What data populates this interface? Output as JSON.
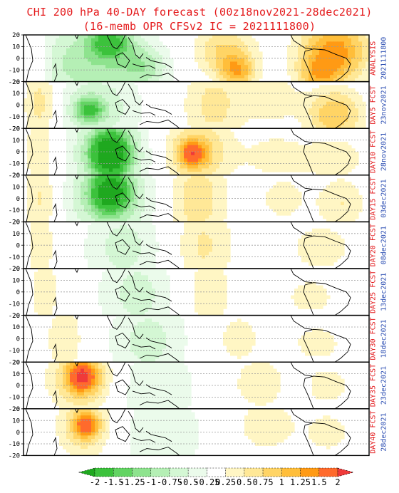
{
  "title": "CHI 200 hPa 40-DAY forecast (00z18nov2021-28dec2021)",
  "subtitle": "(16-memb OPR CFSv2 IC = 2021111800)",
  "chart_data": {
    "type": "heatmap",
    "title": "CHI 200 hPa 40-DAY forecast (00z18nov2021-28dec2021)",
    "subtitle": "(16-memb OPR CFSv2 IC = 2021111800)",
    "y_ticks": [
      20,
      10,
      0,
      -10,
      -20
    ],
    "ylim": [
      -20,
      20
    ],
    "colorbar": {
      "labels": [
        "-2",
        "-1.5",
        "-1.25",
        "-1",
        "-0.75",
        "-0.5",
        "-0.25",
        "0.25",
        "0.5",
        "0.75",
        "1",
        "1.25",
        "1.5",
        "2"
      ],
      "colors": [
        "#1fa81f",
        "#3cc23c",
        "#63d463",
        "#8ee38e",
        "#b5efb5",
        "#d4f7d4",
        "#ebfbeb",
        "#ffffff",
        "#fff6c4",
        "#ffe897",
        "#ffd465",
        "#ffbe3a",
        "#ff9a14",
        "#ff6a2c",
        "#ef3a3a"
      ]
    },
    "panels": [
      {
        "label": "ANALYSIS",
        "date": "2021111800",
        "label_color": "#e41a1c",
        "date_color": "#2d4fb3",
        "blobs": [
          [
            0.19,
            0.62,
            0.18,
            1.05,
            -0.9
          ],
          [
            0.25,
            0.15,
            0.06,
            0.35,
            -1.2
          ],
          [
            0.35,
            0.7,
            0.07,
            0.45,
            -0.6
          ],
          [
            0.58,
            0.35,
            0.09,
            0.55,
            0.8
          ],
          [
            0.62,
            0.8,
            0.05,
            0.35,
            1.0
          ],
          [
            0.9,
            0.35,
            0.1,
            0.7,
            1.4
          ],
          [
            0.85,
            0.9,
            0.06,
            0.4,
            0.7
          ],
          [
            0.03,
            0.5,
            0.04,
            0.8,
            0.5
          ]
        ]
      },
      {
        "label": "DAY5 FCST",
        "date": "23nov2021",
        "label_color": "#e41a1c",
        "date_color": "#2d4fb3",
        "blobs": [
          [
            0.21,
            0.55,
            0.13,
            0.9,
            -0.7
          ],
          [
            0.19,
            0.6,
            0.04,
            0.25,
            -1.1
          ],
          [
            0.55,
            0.5,
            0.09,
            0.9,
            0.6
          ],
          [
            0.72,
            0.35,
            0.08,
            0.6,
            0.4
          ],
          [
            0.9,
            0.7,
            0.08,
            0.55,
            1.0
          ],
          [
            0.05,
            0.5,
            0.05,
            1.0,
            0.7
          ]
        ]
      },
      {
        "label": "DAY10 FCST",
        "date": "28nov2021",
        "label_color": "#e41a1c",
        "date_color": "#2d4fb3",
        "blobs": [
          [
            0.25,
            0.55,
            0.12,
            1.05,
            -1.0
          ],
          [
            0.25,
            0.55,
            0.05,
            0.45,
            -2.0
          ],
          [
            0.5,
            0.5,
            0.1,
            0.75,
            0.9
          ],
          [
            0.49,
            0.55,
            0.035,
            0.25,
            1.2
          ],
          [
            0.73,
            0.6,
            0.09,
            0.5,
            0.4
          ],
          [
            0.9,
            0.65,
            0.09,
            0.5,
            0.45
          ],
          [
            0.05,
            0.5,
            0.05,
            1.0,
            0.5
          ]
        ]
      },
      {
        "label": "DAY15 FCST",
        "date": "03dec2021",
        "label_color": "#e41a1c",
        "date_color": "#2d4fb3",
        "blobs": [
          [
            0.25,
            0.45,
            0.13,
            1.05,
            -1.0
          ],
          [
            0.25,
            0.35,
            0.05,
            0.4,
            -1.8
          ],
          [
            0.5,
            0.5,
            0.09,
            1.0,
            0.7
          ],
          [
            0.75,
            0.5,
            0.08,
            0.6,
            0.35
          ],
          [
            0.92,
            0.6,
            0.07,
            0.6,
            0.5
          ],
          [
            0.05,
            0.5,
            0.05,
            1.0,
            0.6
          ]
        ]
      },
      {
        "label": "DAY20 FCST",
        "date": "08dec2021",
        "label_color": "#e41a1c",
        "date_color": "#2d4fb3",
        "blobs": [
          [
            0.29,
            0.55,
            0.12,
            1.05,
            -0.6
          ],
          [
            0.52,
            0.5,
            0.09,
            1.0,
            0.55
          ],
          [
            0.86,
            0.55,
            0.1,
            0.6,
            0.4
          ],
          [
            0.05,
            0.5,
            0.05,
            1.0,
            0.4
          ]
        ]
      },
      {
        "label": "DAY25 FCST",
        "date": "13dec2021",
        "label_color": "#e41a1c",
        "date_color": "#2d4fb3",
        "blobs": [
          [
            0.33,
            0.55,
            0.12,
            1.05,
            -0.6
          ],
          [
            0.53,
            0.5,
            0.08,
            0.9,
            0.45
          ],
          [
            0.83,
            0.6,
            0.09,
            0.5,
            0.35
          ],
          [
            0.06,
            0.5,
            0.05,
            0.9,
            0.4
          ]
        ]
      },
      {
        "label": "DAY30 FCST",
        "date": "18dec2021",
        "label_color": "#e41a1c",
        "date_color": "#2d4fb3",
        "blobs": [
          [
            0.36,
            0.55,
            0.12,
            1.05,
            -0.6
          ],
          [
            0.12,
            0.5,
            0.06,
            0.8,
            0.45
          ],
          [
            0.62,
            0.5,
            0.08,
            0.7,
            0.35
          ],
          [
            0.85,
            0.6,
            0.09,
            0.5,
            0.35
          ]
        ]
      },
      {
        "label": "DAY35 FCST",
        "date": "23dec2021",
        "label_color": "#e41a1c",
        "date_color": "#2d4fb3",
        "blobs": [
          [
            0.38,
            0.55,
            0.13,
            1.05,
            -0.5
          ],
          [
            0.17,
            0.35,
            0.09,
            0.7,
            1.0
          ],
          [
            0.17,
            0.3,
            0.04,
            0.3,
            1.3
          ],
          [
            0.68,
            0.45,
            0.08,
            0.6,
            0.45
          ],
          [
            0.88,
            0.5,
            0.08,
            0.55,
            0.35
          ]
        ]
      },
      {
        "label": "DAY40 FCST",
        "date": "28dec2021",
        "label_color": "#e41a1c",
        "date_color": "#2d4fb3",
        "blobs": [
          [
            0.4,
            0.55,
            0.13,
            1.05,
            -0.5
          ],
          [
            0.18,
            0.35,
            0.08,
            0.7,
            0.8
          ],
          [
            0.18,
            0.35,
            0.035,
            0.25,
            1.1
          ],
          [
            0.7,
            0.35,
            0.08,
            0.55,
            0.5
          ],
          [
            0.88,
            0.5,
            0.08,
            0.55,
            0.35
          ]
        ]
      }
    ]
  }
}
